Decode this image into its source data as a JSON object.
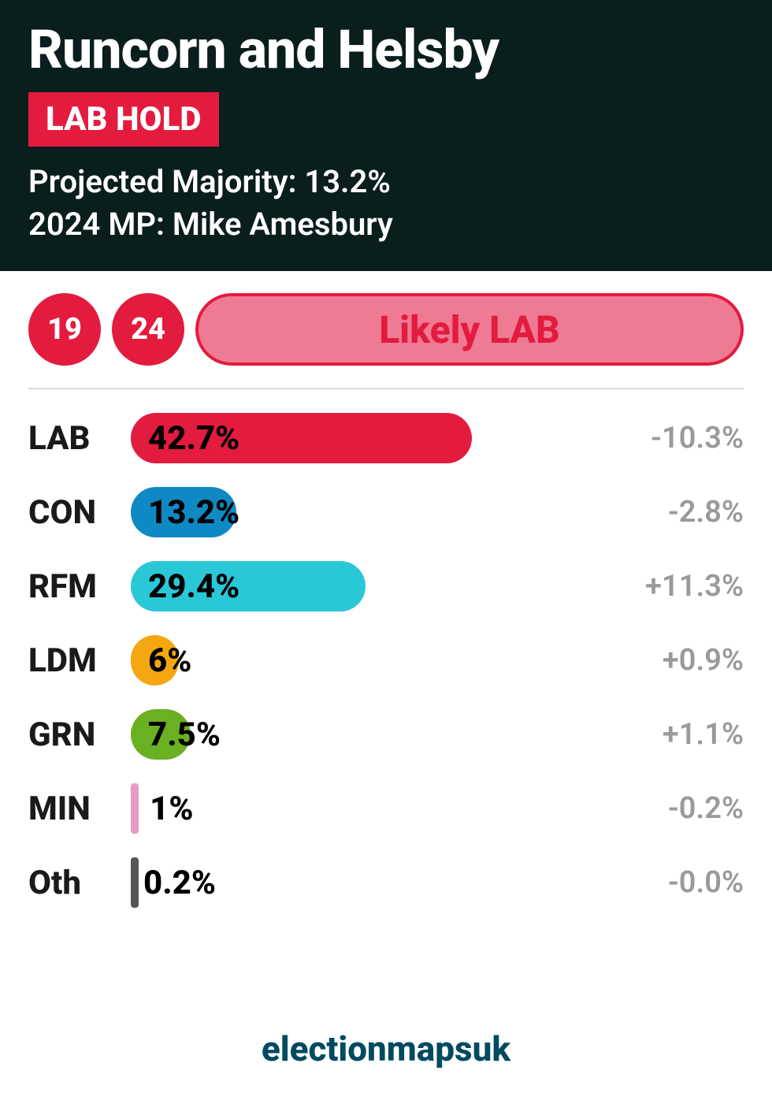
{
  "header": {
    "constituency": "Runcorn and Helsby",
    "hold_label": "LAB HOLD",
    "hold_bg": "#e31b3f",
    "hold_fg": "#ffffff",
    "majority_label": "Projected Majority: 13.2%",
    "mp_label": "2024 MP: Mike Amesbury",
    "bg_color": "#0b1e1e",
    "fg_color": "#ffffff",
    "title_fontsize": 68,
    "meta_fontsize": 40
  },
  "pills": {
    "year1": {
      "label": "19",
      "bg": "#e31b3f"
    },
    "year2": {
      "label": "24",
      "bg": "#e31b3f"
    },
    "likely": {
      "label": "Likely LAB",
      "bg": "#ef7a93",
      "border": "#e31b3f",
      "fg": "#e31b3f"
    }
  },
  "chart": {
    "type": "bar",
    "max_pct": 62,
    "bar_radius": 32,
    "background_color": "#ffffff",
    "label_fontsize": 42,
    "value_fontsize": 42,
    "change_fontsize": 38,
    "change_color": "#9a9a9a",
    "parties": [
      {
        "code": "LAB",
        "pct": 42.7,
        "pct_label": "42.7%",
        "change": "-10.3%",
        "color": "#e31b3f",
        "label_offset": "inside"
      },
      {
        "code": "CON",
        "pct": 13.2,
        "pct_label": "13.2%",
        "change": "-2.8%",
        "color": "#0f89c4",
        "label_offset": "inside"
      },
      {
        "code": "RFM",
        "pct": 29.4,
        "pct_label": "29.4%",
        "change": "+11.3%",
        "color": "#2ac8d6",
        "label_offset": "inside"
      },
      {
        "code": "LDM",
        "pct": 6.0,
        "pct_label": "6%",
        "change": "+0.9%",
        "color": "#f5a712",
        "label_offset": "inside"
      },
      {
        "code": "GRN",
        "pct": 7.5,
        "pct_label": "7.5%",
        "change": "+1.1%",
        "color": "#6ab023",
        "label_offset": "inside"
      },
      {
        "code": "MIN",
        "pct": 1.0,
        "pct_label": "1%",
        "change": "-0.2%",
        "color": "#e89ac7",
        "label_offset": "outside"
      },
      {
        "code": "Oth",
        "pct": 0.2,
        "pct_label": "0.2%",
        "change": "-0.0%",
        "color": "#555555",
        "label_offset": "outside"
      }
    ]
  },
  "footer": {
    "text": "electionmapsuk",
    "color": "#004a61"
  }
}
